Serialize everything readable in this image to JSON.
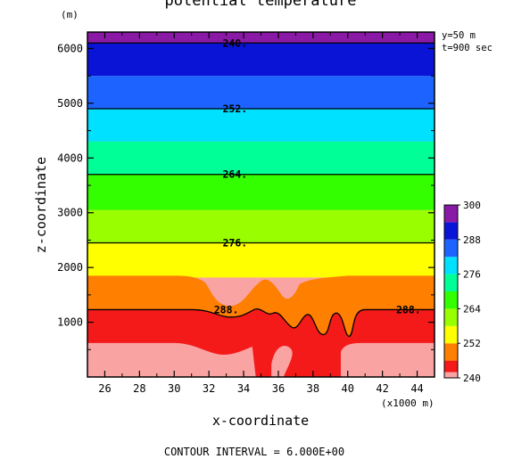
{
  "chart_data": {
    "type": "heatmap",
    "title": "potential temperature",
    "xlabel": "x-coordinate",
    "ylabel": "z-coordinate",
    "x_unit": "(x1000 m)",
    "y_unit": "(m)",
    "xlim": [
      25,
      45
    ],
    "ylim": [
      0,
      6300
    ],
    "x_ticks": [
      26,
      28,
      30,
      32,
      34,
      36,
      38,
      40,
      42,
      44
    ],
    "y_ticks": [
      1000,
      2000,
      3000,
      4000,
      5000,
      6000
    ],
    "info": [
      "y=50 m",
      "t=900 sec"
    ],
    "footer": "CONTOUR INTERVAL = 6.000E+00",
    "colorbar": {
      "levels": [
        240,
        243,
        246,
        249,
        252,
        255,
        258,
        261,
        264,
        267,
        270,
        273,
        276,
        279,
        282,
        285,
        288,
        291,
        294,
        297,
        300
      ],
      "tick_labels": [
        "240",
        "252",
        "264",
        "276",
        "288",
        "300"
      ],
      "tick_values": [
        240,
        252,
        264,
        276,
        288,
        300
      ],
      "colors": [
        "#8a1aa6",
        "#0a14d6",
        "#1d63ff",
        "#00e0ff",
        "#00ff96",
        "#33ff00",
        "#99ff00",
        "#ffff00",
        "#ff7f00",
        "#f41a1a",
        "#f9a3a3"
      ]
    },
    "band_boundaries_z": [
      6100,
      5500,
      4900,
      4300,
      3700,
      3050,
      2450,
      1850,
      1230,
      620
    ],
    "contour_labels": [
      {
        "text": "240.",
        "x": 33.5,
        "z": 6100
      },
      {
        "text": "252.",
        "x": 33.5,
        "z": 4900
      },
      {
        "text": "264.",
        "x": 33.5,
        "z": 3700
      },
      {
        "text": "276.",
        "x": 33.5,
        "z": 2450
      },
      {
        "text": "288.",
        "x": 33.0,
        "z": 1230
      },
      {
        "text": "288.",
        "x": 43.5,
        "z": 1230
      }
    ]
  }
}
